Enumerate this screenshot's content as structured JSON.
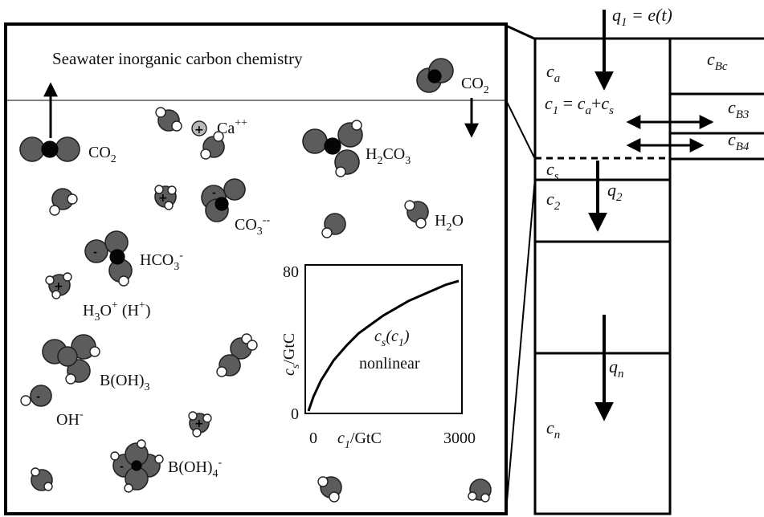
{
  "panel_title": "Seawater inorganic carbon chemistry",
  "molecule_labels": {
    "co2_top": "CO",
    "co2_top_sub": "2",
    "co2_left": "CO",
    "co2_left_sub": "2",
    "ca": "Ca",
    "ca_sup": "++",
    "h2co3_a": "H",
    "h2co3_sub1": "2",
    "h2co3_b": "CO",
    "h2co3_sub2": "3",
    "co3_a": "CO",
    "co3_sub": "3",
    "co3_sup": "--",
    "h2o_a": "H",
    "h2o_sub": "2",
    "h2o_b": "O",
    "hco3_a": "HCO",
    "hco3_sub": "3",
    "hco3_sup": "-",
    "h3o_a": "H",
    "h3o_sub": "3",
    "h3o_b": "O",
    "h3o_sup": "+",
    "h3o_c": " (H",
    "h3o_sup2": "+",
    "h3o_d": ")",
    "boh3_a": "B(OH)",
    "boh3_sub": "3",
    "oh_a": "OH",
    "oh_sup": "-",
    "boh4_a": "B(OH)",
    "boh4_sub": "4",
    "boh4_sup": "-"
  },
  "inset": {
    "ylabel_c": "c",
    "ylabel_sub": "s",
    "ylabel_unit": "/GtC",
    "xlabel_c": "c",
    "xlabel_sub": "1",
    "xlabel_unit": "/GtC",
    "curve_label_c": "c",
    "curve_label_sub": "s",
    "curve_label_open": "(c",
    "curve_label_sub2": "1",
    "curve_label_close": ")",
    "curve_label_word": "nonlinear",
    "x_tick_0": "0",
    "x_tick_max": "3000",
    "y_tick_0": "0",
    "y_tick_max": "80"
  },
  "chart_data": {
    "type": "line",
    "xlabel": "c1/GtC",
    "ylabel": "cs/GtC",
    "xlim": [
      0,
      3000
    ],
    "ylim": [
      0,
      80
    ],
    "series": [
      {
        "name": "cs(c1) nonlinear",
        "x": [
          0,
          100,
          250,
          500,
          750,
          1000,
          1250,
          1500,
          1750,
          2000,
          2250,
          2500,
          2750,
          3000
        ],
        "values": [
          0,
          8,
          17,
          28,
          36,
          43,
          48,
          53,
          57,
          61,
          64,
          67,
          70,
          72
        ]
      }
    ]
  },
  "box_model": {
    "q1_label": "q",
    "q1_sub": "1",
    "q1_rest": " = e(t)",
    "ca": "c",
    "ca_sub": "a",
    "c1_lhs": "c",
    "c1_lhs_sub": "1",
    "c1_eq": " = ",
    "c1_a": "c",
    "c1_a_sub": "a",
    "c1_plus": "+",
    "c1_s": "c",
    "c1_s_sub": "s",
    "cs": "c",
    "cs_sub": "s",
    "c2": "c",
    "c2_sub": "2",
    "q2": "q",
    "q2_sub": "2",
    "qn": "q",
    "qn_sub": "n",
    "cn": "c",
    "cn_sub": "n",
    "cbc": "c",
    "cbc_sub": "Bc",
    "cb3": "c",
    "cb3_sub": "B3",
    "cb4": "c",
    "cb4_sub": "B4"
  }
}
